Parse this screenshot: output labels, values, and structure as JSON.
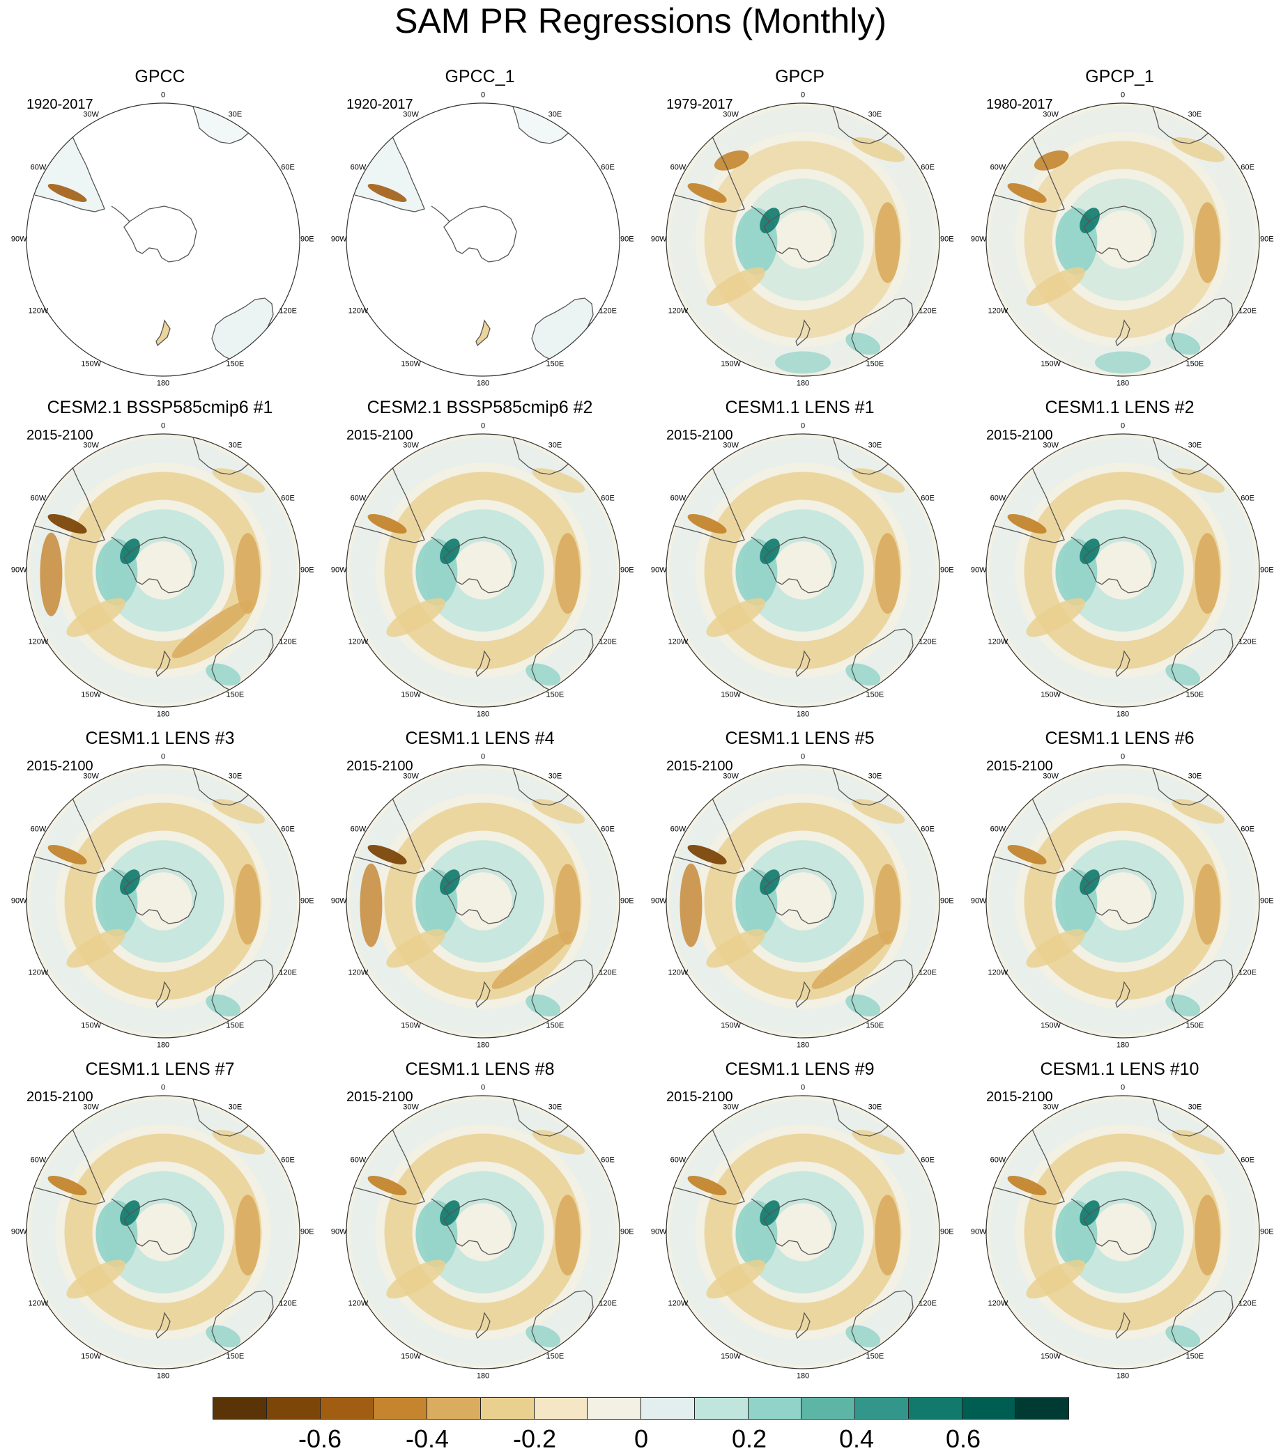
{
  "title": "SAM PR Regressions (Monthly)",
  "lon_labels": {
    "n": "0",
    "nne": "30E",
    "ene": "60E",
    "e": "90E",
    "ese": "120E",
    "sse": "150E",
    "s": "180",
    "ssw": "150W",
    "wsw": "120W",
    "w": "90W",
    "wnw": "60W",
    "nnw": "30W"
  },
  "colors": {
    "coast": "#555555",
    "circle": "#333333",
    "scale": [
      "#5a3406",
      "#7c4609",
      "#a15e13",
      "#c4852e",
      "#d9ac5f",
      "#ead08f",
      "#f5e7c5",
      "#f3f0e4",
      "#e2efee",
      "#bfe5dd",
      "#91d3c8",
      "#5db5a6",
      "#33968a",
      "#117a6d",
      "#005d52",
      "#003b33"
    ]
  },
  "colorbar": {
    "labels": [
      "-0.6",
      "-0.4",
      "-0.2",
      "0",
      "0.2",
      "0.4",
      "0.6"
    ]
  },
  "panels": [
    {
      "title": "GPCC",
      "period": "1920-2017",
      "style": "obs_land"
    },
    {
      "title": "GPCC_1",
      "period": "1920-2017",
      "style": "obs_land"
    },
    {
      "title": "GPCP",
      "period": "1979-2017",
      "style": "obs"
    },
    {
      "title": "GPCP_1",
      "period": "1980-2017",
      "style": "obs"
    },
    {
      "title": "CESM2.1 BSSP585cmip6 #1",
      "period": "2015-2100",
      "style": "model_strong"
    },
    {
      "title": "CESM2.1 BSSP585cmip6 #2",
      "period": "2015-2100",
      "style": "model"
    },
    {
      "title": "CESM1.1 LENS #1",
      "period": "2015-2100",
      "style": "model"
    },
    {
      "title": "CESM1.1 LENS #2",
      "period": "2015-2100",
      "style": "model"
    },
    {
      "title": "CESM1.1 LENS #3",
      "period": "2015-2100",
      "style": "model"
    },
    {
      "title": "CESM1.1 LENS #4",
      "period": "2015-2100",
      "style": "model_strong"
    },
    {
      "title": "CESM1.1 LENS #5",
      "period": "2015-2100",
      "style": "model_strong"
    },
    {
      "title": "CESM1.1 LENS #6",
      "period": "2015-2100",
      "style": "model"
    },
    {
      "title": "CESM1.1 LENS #7",
      "period": "2015-2100",
      "style": "model"
    },
    {
      "title": "CESM1.1 LENS #8",
      "period": "2015-2100",
      "style": "model"
    },
    {
      "title": "CESM1.1 LENS #9",
      "period": "2015-2100",
      "style": "model"
    },
    {
      "title": "CESM1.1 LENS #10",
      "period": "2015-2100",
      "style": "model"
    }
  ]
}
